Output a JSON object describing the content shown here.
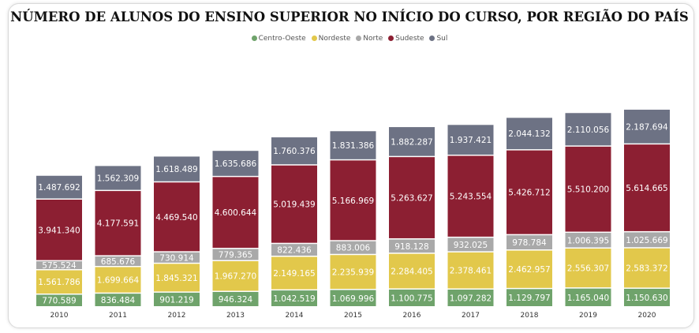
{
  "chart_data": {
    "type": "bar",
    "stacked": true,
    "title": "NÚMERO DE ALUNOS DO ENSINO SUPERIOR NO INÍCIO DO CURSO, POR REGIÃO DO PAÍS",
    "legend_position": "top",
    "grid": false,
    "categories": [
      "2010",
      "2011",
      "2012",
      "2013",
      "2014",
      "2015",
      "2016",
      "2017",
      "2018",
      "2019",
      "2020"
    ],
    "series": [
      {
        "name": "Centro-Oeste",
        "color": "#6fa36b",
        "values": [
          770589,
          836484,
          901219,
          946324,
          1042519,
          1069996,
          1100775,
          1097282,
          1129797,
          1165040,
          1150630
        ],
        "labels": [
          "770.589",
          "836.484",
          "901.219",
          "946.324",
          "1.042.519",
          "1.069.996",
          "1.100.775",
          "1.097.282",
          "1.129.797",
          "1.165.040",
          "1.150.630"
        ]
      },
      {
        "name": "Nordeste",
        "color": "#e2c84b",
        "values": [
          1561786,
          1699664,
          1845321,
          1967270,
          2149165,
          2235939,
          2284405,
          2378461,
          2462957,
          2556307,
          2583372
        ],
        "labels": [
          "1.561.786",
          "1.699.664",
          "1.845.321",
          "1.967.270",
          "2.149.165",
          "2.235.939",
          "2.284.405",
          "2.378.461",
          "2.462.957",
          "2.556.307",
          "2.583.372"
        ]
      },
      {
        "name": "Norte",
        "color": "#a9a9a9",
        "values": [
          575524,
          685676,
          730914,
          779365,
          822436,
          883006,
          918128,
          932025,
          978784,
          1006395,
          1025669
        ],
        "labels": [
          "575.524",
          "685.676",
          "730.914",
          "779.365",
          "822.436",
          "883.006",
          "918.128",
          "932.025",
          "978.784",
          "1.006.395",
          "1.025.669"
        ]
      },
      {
        "name": "Sudeste",
        "color": "#8c1f32",
        "values": [
          3941340,
          4177591,
          4469540,
          4600644,
          5019439,
          5166969,
          5263627,
          5243554,
          5426712,
          5510200,
          5614665
        ],
        "labels": [
          "3.941.340",
          "4.177.591",
          "4.469.540",
          "4.600.644",
          "5.019.439",
          "5.166.969",
          "5.263.627",
          "5.243.554",
          "5.426.712",
          "5.510.200",
          "5.614.665"
        ]
      },
      {
        "name": "Sul",
        "color": "#6d7284",
        "values": [
          1487692,
          1562309,
          1618489,
          1635686,
          1760376,
          1831386,
          1882287,
          1937421,
          2044132,
          2110056,
          2187694
        ],
        "labels": [
          "1.487.692",
          "1.562.309",
          "1.618.489",
          "1.635.686",
          "1.760.376",
          "1.831.386",
          "1.882.287",
          "1.937.421",
          "2.044.132",
          "2.110.056",
          "2.187.694"
        ]
      }
    ]
  }
}
